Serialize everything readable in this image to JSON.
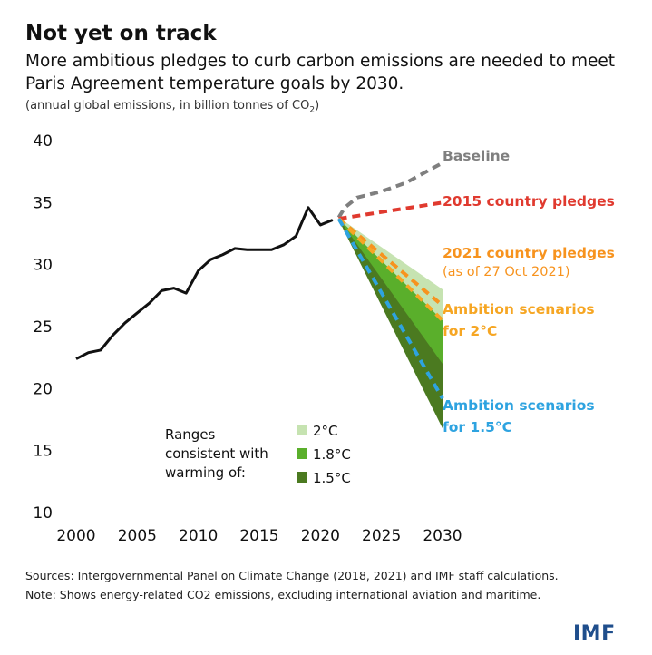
{
  "header": {
    "title": "Not yet on track",
    "subtitle": "More ambitious pledges to curb carbon emissions are needed to meet Paris Agreement temperature goals by 2030.",
    "units_prefix": "(annual global emissions, in billion tonnes of CO",
    "units_sub": "2",
    "units_suffix": ")"
  },
  "footer": {
    "sources": "Sources: Intergovernmental Panel on Climate Change (2018, 2021) and IMF staff calculations.",
    "note": "Note: Shows energy-related CO2 emissions, excluding international aviation and maritime."
  },
  "logo": "IMF",
  "chart_data": {
    "type": "line",
    "xlim": [
      2000,
      2030
    ],
    "ylim": [
      10,
      40
    ],
    "x_ticks": [
      2000,
      2005,
      2010,
      2015,
      2020,
      2025,
      2030
    ],
    "y_ticks": [
      10,
      15,
      20,
      25,
      30,
      35,
      40
    ],
    "grid": false,
    "historical": {
      "color": "#111111",
      "x": [
        2000,
        2001,
        2002,
        2003,
        2004,
        2005,
        2006,
        2007,
        2008,
        2009,
        2010,
        2011,
        2012,
        2013,
        2014,
        2015,
        2016,
        2017,
        2018,
        2019,
        2020,
        2021
      ],
      "y": [
        22.4,
        22.9,
        23.1,
        24.3,
        25.3,
        26.1,
        26.9,
        27.9,
        28.1,
        27.7,
        29.5,
        30.4,
        30.8,
        31.3,
        31.2,
        31.2,
        31.2,
        31.6,
        32.3,
        34.6,
        33.2,
        33.6
      ]
    },
    "scenarios": [
      {
        "label": "Baseline",
        "label2": "",
        "color": "#7f7f7f",
        "x": [
          2021.5,
          2022,
          2023,
          2025,
          2027,
          2030
        ],
        "y": [
          33.8,
          34.6,
          35.4,
          35.9,
          36.6,
          38.2
        ]
      },
      {
        "label": "2015 country pledges",
        "label2": "",
        "color": "#e03a2f",
        "x": [
          2021.5,
          2030
        ],
        "y": [
          33.7,
          35.0
        ]
      },
      {
        "label": "2021 country pledges",
        "label2": "(as of 27 Oct 2021)",
        "color": "#f7931e",
        "x": [
          2021.5,
          2030
        ],
        "y": [
          33.7,
          26.7
        ]
      },
      {
        "label": "Ambition scenarios",
        "label2": "for 2°C",
        "color": "#f6a623",
        "x": [
          2021.5,
          2030
        ],
        "y": [
          33.7,
          25.5
        ]
      },
      {
        "label": "Ambition scenarios",
        "label2": "for 1.5°C",
        "color": "#2ea3e0",
        "x": [
          2021.5,
          2030
        ],
        "y": [
          33.7,
          19.2
        ]
      }
    ],
    "ranges": [
      {
        "name": "2°C",
        "color": "#c6e3b1",
        "x": [
          2021.5,
          2030
        ],
        "low": [
          33.6,
          24.2
        ],
        "high": [
          33.8,
          28.0
        ]
      },
      {
        "name": "1.8°C",
        "color": "#5aaf2b",
        "x": [
          2021.5,
          2030
        ],
        "low": [
          33.6,
          20.5
        ],
        "high": [
          33.7,
          25.5
        ]
      },
      {
        "name": "1.5°C",
        "color": "#4b7a20",
        "x": [
          2021.5,
          2030
        ],
        "low": [
          33.6,
          16.8
        ],
        "high": [
          33.7,
          22.0
        ]
      }
    ],
    "legend": {
      "title_lines": [
        "Ranges",
        "consistent with",
        "warming of:"
      ],
      "placement": "bottom-center"
    }
  }
}
